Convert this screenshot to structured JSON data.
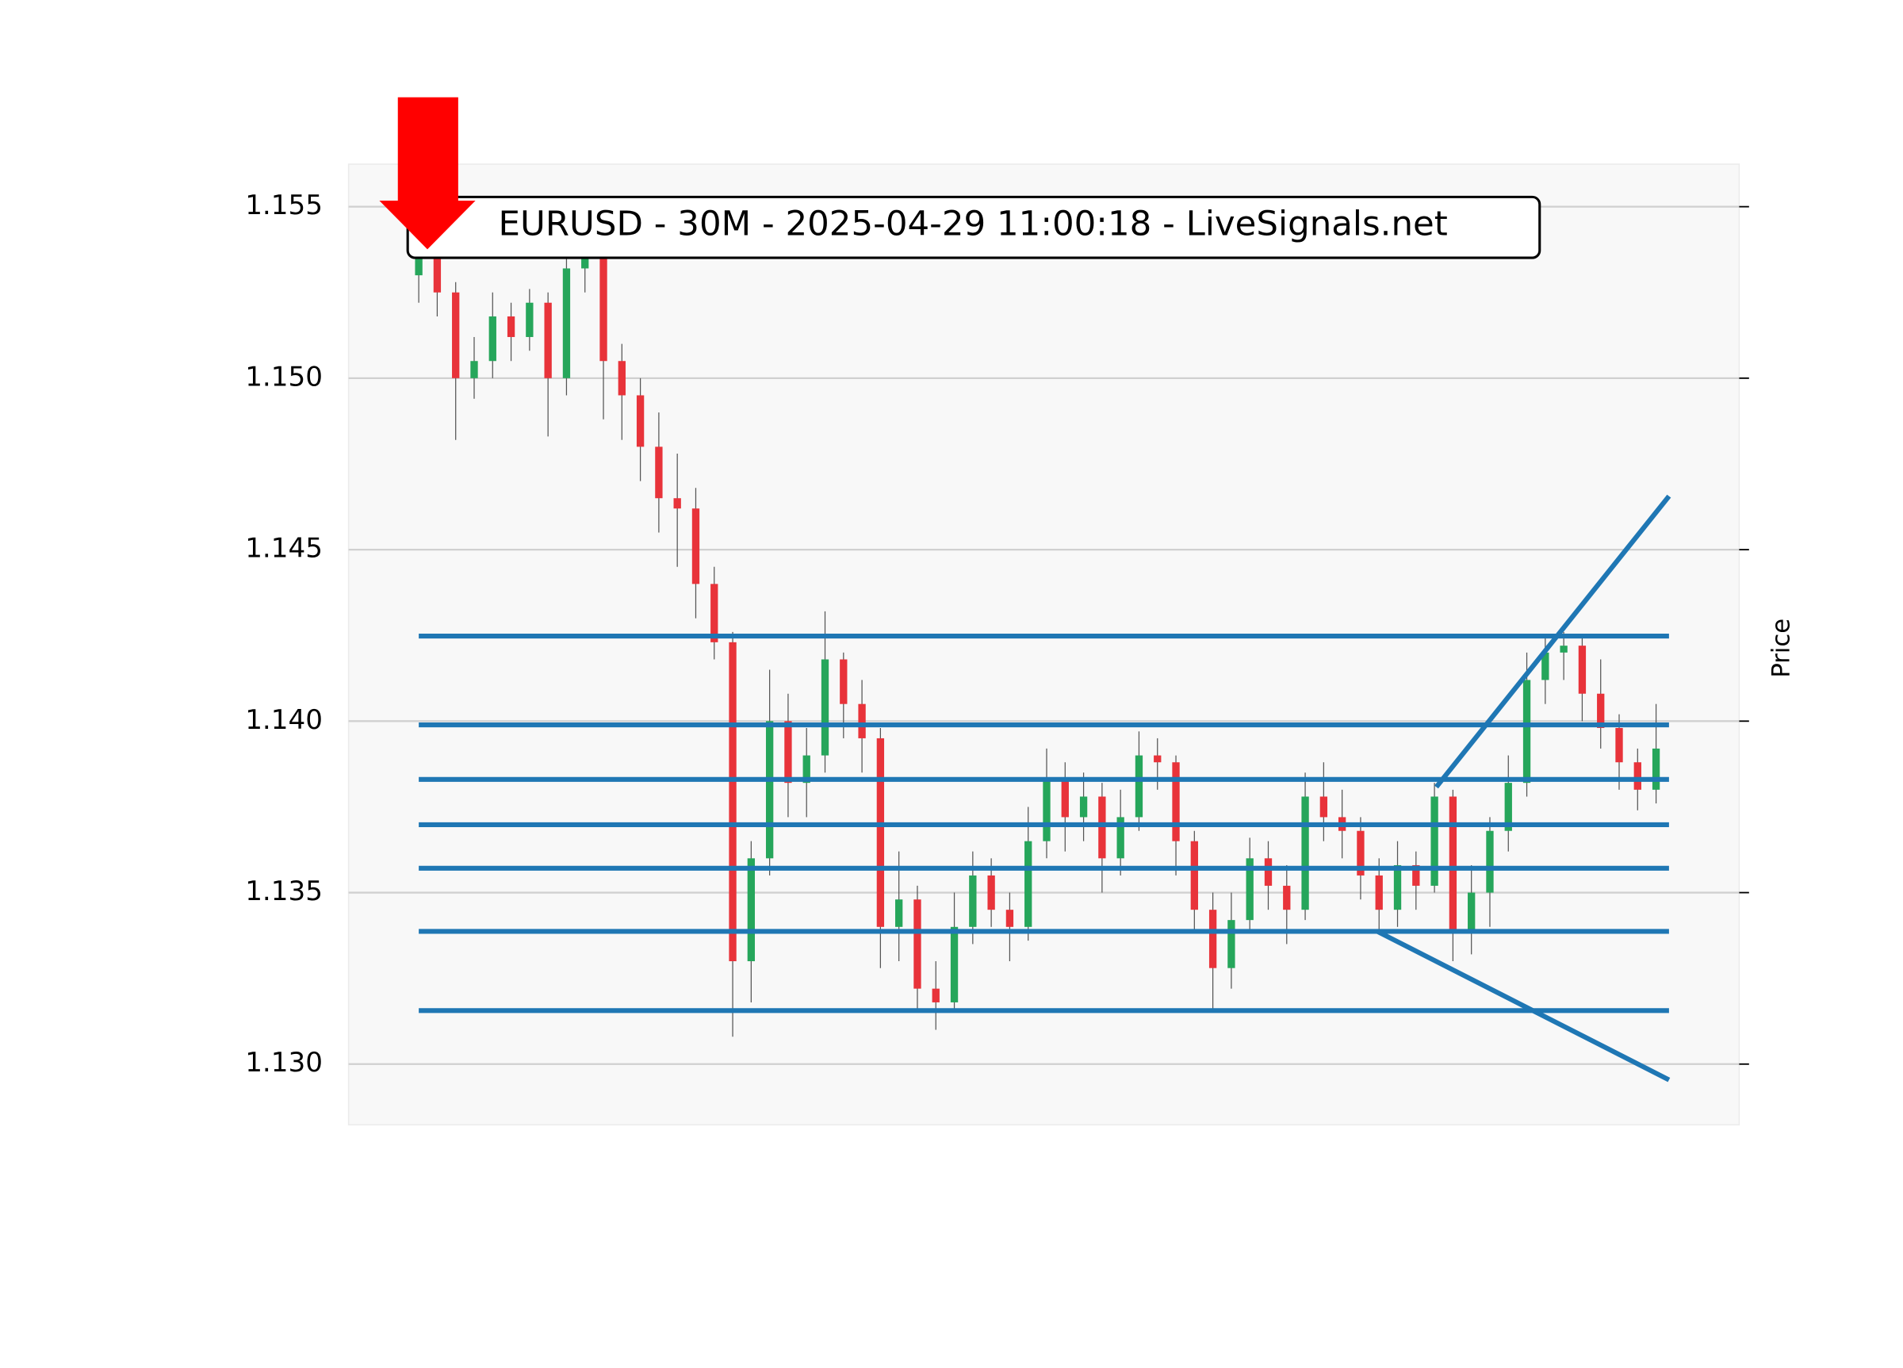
{
  "chart_data": {
    "type": "candlestick",
    "title": "EURUSD - 30M - 2025-04-29 11:00:18 - LiveSignals.net",
    "ylabel": "Price",
    "up_color": "#26a65b",
    "down_color": "#e8333a",
    "line_color": "#1f77b4",
    "grid": true,
    "xlim": [
      -3.8,
      71.5
    ],
    "ylim": [
      1.12823,
      1.15624
    ],
    "yticks": [
      {
        "value": 1.13,
        "label": "1.130"
      },
      1.135,
      {
        "value": 1.14,
        "label": "1.140"
      },
      1.145,
      {
        "value": 1.15,
        "label": "1.150"
      },
      1.155
    ],
    "open": [
      1.153,
      1.1535,
      1.1525,
      1.15,
      1.1505,
      1.1518,
      1.1512,
      1.1522,
      1.15,
      1.1532,
      1.1535,
      1.1505,
      1.1495,
      1.148,
      1.1465,
      1.1462,
      1.144,
      1.1423,
      1.133,
      1.136,
      1.14,
      1.1382,
      1.139,
      1.1418,
      1.1405,
      1.1395,
      1.134,
      1.1348,
      1.1322,
      1.1318,
      1.134,
      1.1355,
      1.1345,
      1.134,
      1.1365,
      1.1383,
      1.1372,
      1.1378,
      1.136,
      1.1372,
      1.139,
      1.1388,
      1.1365,
      1.1345,
      1.1328,
      1.1342,
      1.136,
      1.1352,
      1.1345,
      1.1378,
      1.1372,
      1.1368,
      1.1355,
      1.1345,
      1.1358,
      1.1352,
      1.1378,
      1.1338,
      1.135,
      1.1368,
      1.1382,
      1.1412,
      1.142,
      1.1422,
      1.1408,
      1.1398,
      1.1388,
      1.138
    ],
    "high": [
      1.154,
      1.154,
      1.1528,
      1.1512,
      1.1525,
      1.1522,
      1.1526,
      1.1525,
      1.154,
      1.154,
      1.1538,
      1.151,
      1.15,
      1.149,
      1.1478,
      1.1468,
      1.1445,
      1.1426,
      1.1365,
      1.1415,
      1.1408,
      1.1398,
      1.1432,
      1.142,
      1.1412,
      1.1398,
      1.1362,
      1.1352,
      1.133,
      1.135,
      1.1362,
      1.136,
      1.135,
      1.1375,
      1.1392,
      1.1388,
      1.1385,
      1.1382,
      1.138,
      1.1397,
      1.1395,
      1.139,
      1.1368,
      1.135,
      1.135,
      1.1366,
      1.1365,
      1.1358,
      1.1385,
      1.1388,
      1.138,
      1.1372,
      1.136,
      1.1365,
      1.1362,
      1.1382,
      1.138,
      1.1358,
      1.1372,
      1.139,
      1.142,
      1.1425,
      1.1426,
      1.1425,
      1.1418,
      1.1402,
      1.1392,
      1.1405
    ],
    "low": [
      1.1522,
      1.1518,
      1.1482,
      1.1494,
      1.15,
      1.1505,
      1.1508,
      1.1483,
      1.1495,
      1.1525,
      1.1488,
      1.1482,
      1.147,
      1.1455,
      1.1445,
      1.143,
      1.1418,
      1.1308,
      1.1318,
      1.1355,
      1.1372,
      1.1372,
      1.1385,
      1.1395,
      1.1385,
      1.1328,
      1.133,
      1.1315,
      1.131,
      1.1315,
      1.1335,
      1.134,
      1.133,
      1.1336,
      1.136,
      1.1362,
      1.1365,
      1.135,
      1.1355,
      1.1368,
      1.138,
      1.1355,
      1.1338,
      1.1316,
      1.1322,
      1.1338,
      1.1345,
      1.1335,
      1.1342,
      1.1365,
      1.136,
      1.1348,
      1.1338,
      1.134,
      1.1345,
      1.135,
      1.133,
      1.1332,
      1.134,
      1.1362,
      1.1378,
      1.1405,
      1.1412,
      1.14,
      1.1392,
      1.138,
      1.1374,
      1.1376
    ],
    "close": [
      1.1535,
      1.1525,
      1.15,
      1.1505,
      1.1518,
      1.1512,
      1.1522,
      1.15,
      1.1532,
      1.1535,
      1.1505,
      1.1495,
      1.148,
      1.1465,
      1.1462,
      1.144,
      1.1423,
      1.133,
      1.136,
      1.14,
      1.1382,
      1.139,
      1.1418,
      1.1405,
      1.1395,
      1.134,
      1.1348,
      1.1322,
      1.1318,
      1.134,
      1.1355,
      1.1345,
      1.134,
      1.1365,
      1.1383,
      1.1372,
      1.1378,
      1.136,
      1.1372,
      1.139,
      1.1388,
      1.1365,
      1.1345,
      1.1328,
      1.1342,
      1.136,
      1.1352,
      1.1345,
      1.1378,
      1.1372,
      1.1368,
      1.1355,
      1.1345,
      1.1358,
      1.1352,
      1.1378,
      1.1338,
      1.135,
      1.1368,
      1.1382,
      1.1412,
      1.142,
      1.1422,
      1.1408,
      1.1398,
      1.1388,
      1.138,
      1.1392
    ],
    "hline_x": [
      0,
      67.7
    ],
    "hlines": [
      1.14248,
      1.13989,
      1.1383,
      1.13698,
      1.13571,
      1.13387,
      1.13156
    ],
    "trendlines": [
      {
        "x": [
          55.1,
          67.7
        ],
        "y": [
          1.13808,
          1.14656
        ]
      },
      {
        "x": [
          51.9,
          67.7
        ],
        "y": [
          1.13387,
          1.12954
        ]
      }
    ]
  }
}
